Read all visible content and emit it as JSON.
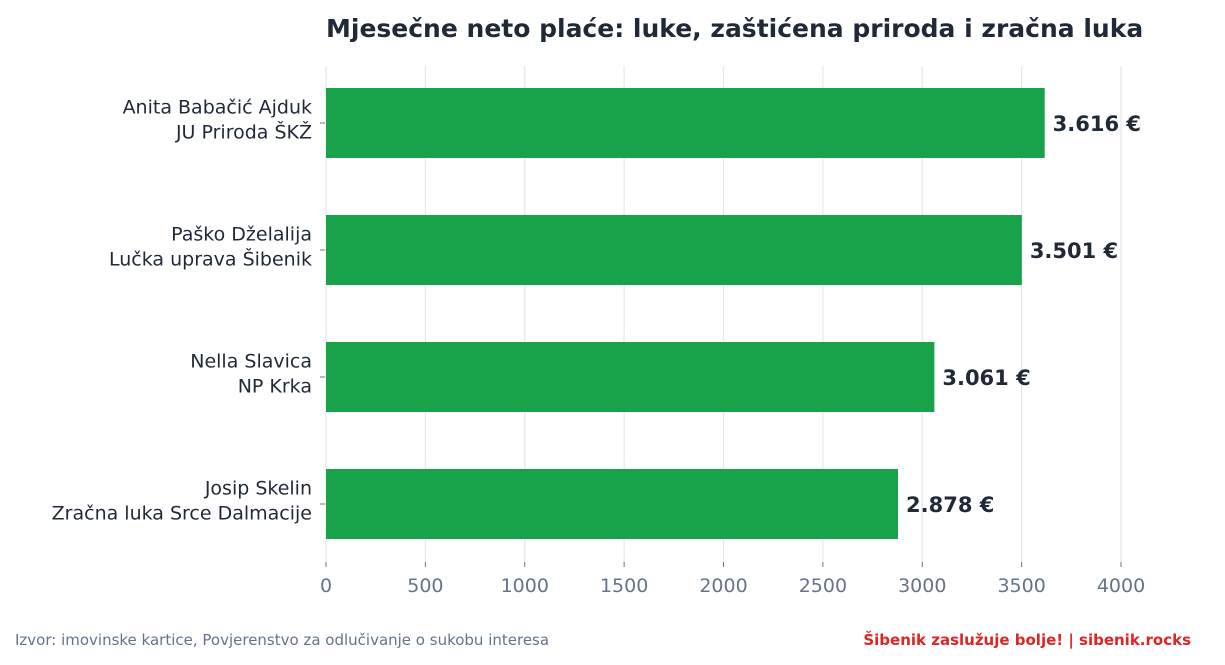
{
  "chart_data": {
    "type": "bar",
    "orientation": "horizontal",
    "title": "Mjesečne neto plaće: luke, zaštićena priroda i zračna luka",
    "xlabel": "",
    "ylabel": "",
    "xlim": [
      0,
      4000
    ],
    "xticks": [
      0,
      500,
      1000,
      1500,
      2000,
      2500,
      3000,
      3500,
      4000
    ],
    "grid": "vertical",
    "bar_color": "#18a34a",
    "categories": [
      [
        "Anita Babačić Ajduk",
        "JU Priroda ŠKŽ"
      ],
      [
        "Paško Dželalija",
        "Lučka uprava Šibenik"
      ],
      [
        "Nella Slavica",
        "NP Krka"
      ],
      [
        "Josip Skelin",
        "Zračna luka Srce Dalmacije"
      ]
    ],
    "values": [
      3616,
      3501,
      3061,
      2878
    ],
    "value_labels": [
      "3.616 €",
      "3.501 €",
      "3.061 €",
      "2.878 €"
    ]
  },
  "footer": {
    "source": "Izvor: imovinske kartice, Povjerenstvo za odlučivanje o sukobu interesa",
    "brand": "Šibenik zaslužuje bolje!  |  sibenik.rocks"
  }
}
